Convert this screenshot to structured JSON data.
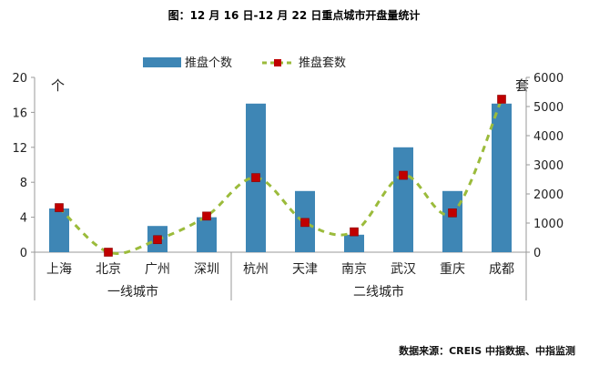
{
  "chart_data": {
    "type": "bar",
    "title": "图：12 月 16 日-12 月 22 日重点城市开盘量统计",
    "categories": [
      "上海",
      "北京",
      "广州",
      "深圳",
      "杭州",
      "天津",
      "南京",
      "武汉",
      "重庆",
      "成都"
    ],
    "groups": [
      {
        "label": "一线城市",
        "count": 4
      },
      {
        "label": "二线城市",
        "count": 6
      }
    ],
    "series": [
      {
        "name": "推盘个数",
        "type": "bar",
        "axis": "left",
        "color": "#3E86B5",
        "values": [
          5,
          0,
          3,
          4,
          17,
          7,
          2,
          12,
          7,
          17
        ]
      },
      {
        "name": "推盘套数",
        "type": "line",
        "axis": "right",
        "color": "#9BBB3B",
        "marker_color": "#C00000",
        "values": [
          1530,
          0,
          430,
          1240,
          2560,
          1020,
          700,
          2640,
          1350,
          5250
        ]
      }
    ],
    "y_left": {
      "unit_label": "个",
      "ticks": [
        0,
        4,
        8,
        12,
        16,
        20
      ],
      "range": [
        0,
        20
      ]
    },
    "y_right": {
      "unit_label": "套",
      "ticks": [
        0,
        1000,
        2000,
        3000,
        4000,
        5000,
        6000
      ],
      "range": [
        0,
        6000
      ]
    },
    "legend_position": "top-center",
    "grid": false,
    "source": "数据来源：CREIS 中指数据、中指监测"
  }
}
